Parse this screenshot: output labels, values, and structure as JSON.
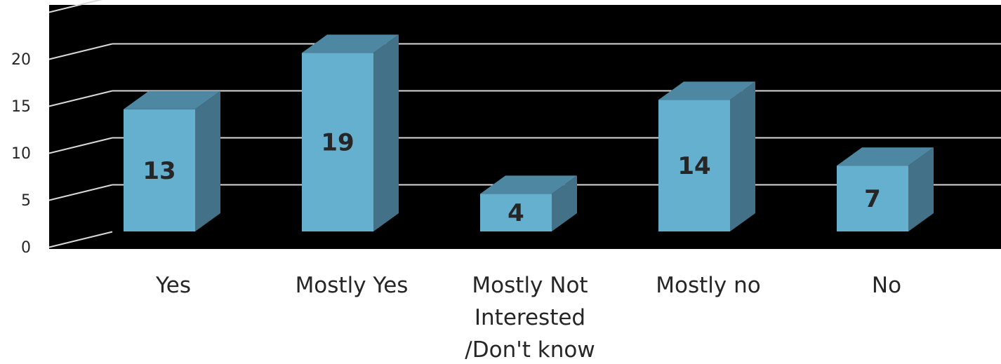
{
  "chart_data": {
    "type": "bar",
    "style": "3d-column",
    "categories": [
      "Yes",
      "Mostly Yes",
      "Mostly Not Interested /Don't know",
      "Mostly no",
      "No"
    ],
    "category_lines": [
      [
        "Yes"
      ],
      [
        "Mostly Yes"
      ],
      [
        "Mostly Not",
        "Interested",
        "/Don't know"
      ],
      [
        "Mostly no"
      ],
      [
        "No"
      ]
    ],
    "values": [
      13,
      19,
      4,
      14,
      7
    ],
    "data_labels": [
      "13",
      "19",
      "4",
      "14",
      "7"
    ],
    "yticks": [
      "0",
      "5",
      "10",
      "15",
      "20"
    ],
    "ylim": [
      0,
      25
    ],
    "grid": true,
    "legend": "none",
    "colors": {
      "bar_front": "#65afcf",
      "bar_top": "#4d87a1",
      "bar_side": "#437187",
      "plot_background": "#000000",
      "gridline": "#d9d9d9",
      "text": "#262626"
    }
  }
}
